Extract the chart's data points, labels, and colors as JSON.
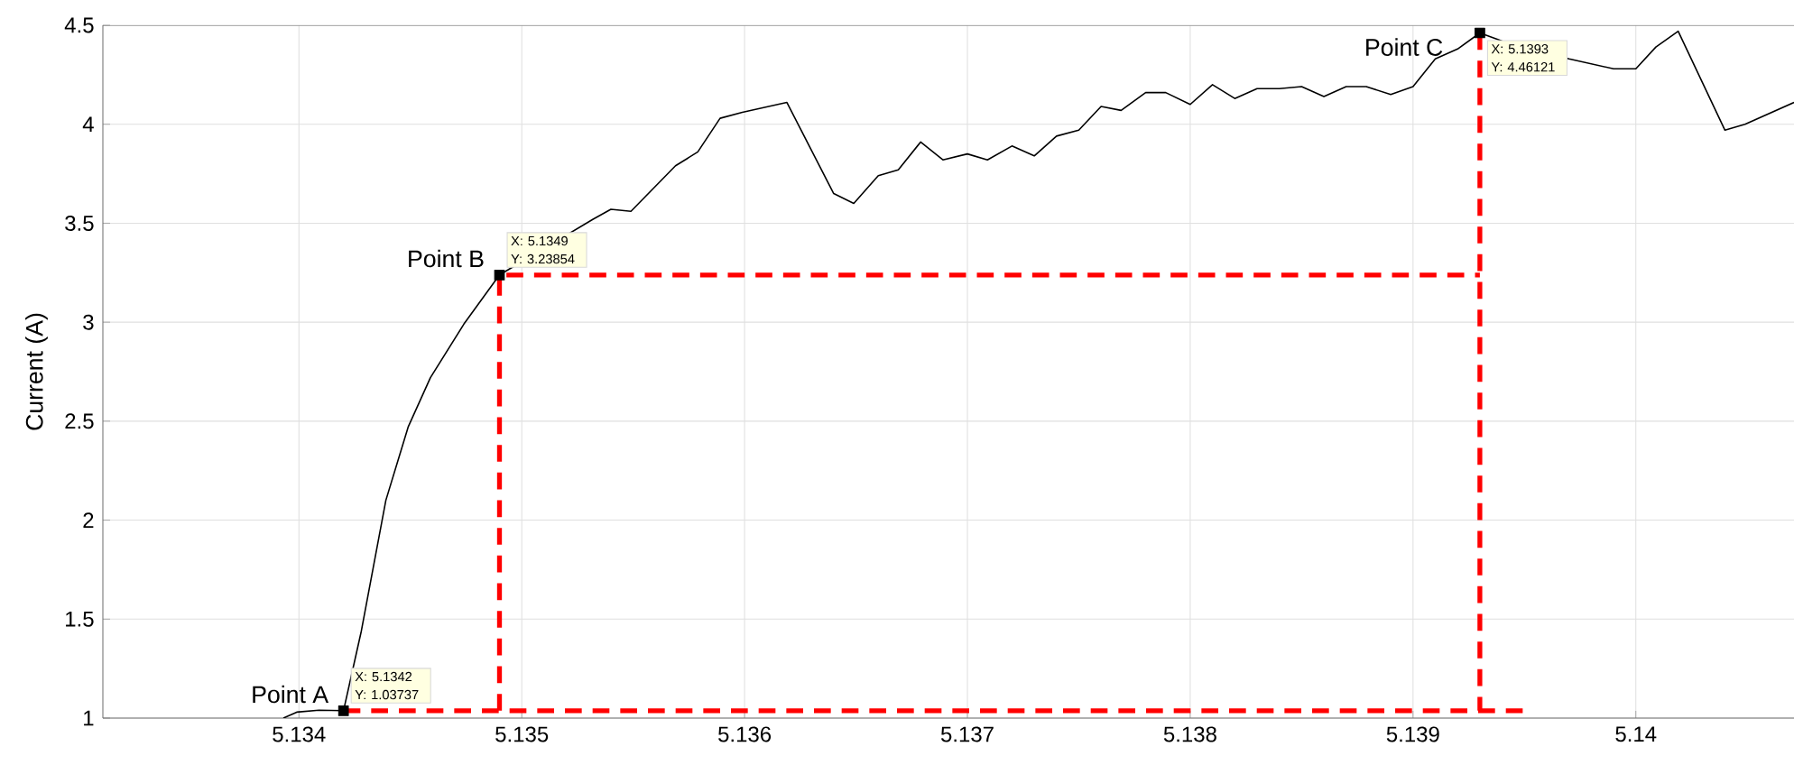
{
  "chart_data": {
    "type": "line",
    "ylabel": "Current (A)",
    "xlim": [
      5.13312,
      5.14071
    ],
    "ylim": [
      1,
      4.5
    ],
    "xticks": [
      5.134,
      5.135,
      5.136,
      5.137,
      5.138,
      5.139,
      5.14
    ],
    "yticks": [
      1,
      1.5,
      2,
      2.5,
      3,
      3.5,
      4,
      4.5
    ],
    "grid": true,
    "series": [
      {
        "color": "#000000",
        "x": [
          5.13393,
          5.13399,
          5.13409,
          5.1342,
          5.13428,
          5.13439,
          5.13449,
          5.13459,
          5.13474,
          5.1349,
          5.13532,
          5.1354,
          5.13549,
          5.13569,
          5.13579,
          5.13589,
          5.13599,
          5.13619,
          5.1364,
          5.13649,
          5.1366,
          5.13669,
          5.13679,
          5.13689,
          5.137,
          5.13709,
          5.1372,
          5.1373,
          5.1374,
          5.1375,
          5.1376,
          5.13769,
          5.1378,
          5.13789,
          5.138,
          5.1381,
          5.1382,
          5.1383,
          5.1384,
          5.1385,
          5.1386,
          5.1387,
          5.13879,
          5.1389,
          5.139,
          5.1391,
          5.1392,
          5.1393,
          5.1394,
          5.1397,
          5.1399,
          5.14,
          5.14009,
          5.14019,
          5.1404,
          5.14049,
          5.14071
        ],
        "values": [
          1.0,
          1.03,
          1.04,
          1.03737,
          1.44,
          2.1,
          2.47,
          2.72,
          2.99,
          3.23854,
          3.52,
          3.57,
          3.56,
          3.79,
          3.86,
          4.03,
          4.06,
          4.11,
          3.65,
          3.6,
          3.74,
          3.77,
          3.91,
          3.82,
          3.85,
          3.82,
          3.89,
          3.84,
          3.94,
          3.97,
          4.09,
          4.07,
          4.16,
          4.16,
          4.1,
          4.2,
          4.13,
          4.18,
          4.18,
          4.19,
          4.14,
          4.19,
          4.19,
          4.15,
          4.19,
          4.33,
          4.38,
          4.46121,
          4.42,
          4.33,
          4.28,
          4.28,
          4.39,
          4.47,
          3.97,
          4.0,
          4.11
        ]
      },
      {
        "type": "line",
        "color": "#ff0000",
        "line_style": "dashed",
        "x": [
          5.1342,
          5.13951,
          null,
          5.1349,
          5.1349,
          5.1393,
          null,
          5.1393,
          5.1393
        ],
        "values": [
          1.03737,
          1.03737,
          null,
          1.03737,
          3.23854,
          3.23854,
          null,
          4.46121,
          1.03737
        ]
      },
      {
        "type": "scatter",
        "color": "#000000",
        "marker": "square",
        "x": [
          5.1342,
          5.1349,
          5.1393
        ],
        "values": [
          1.03737,
          3.23854,
          4.46121
        ]
      }
    ],
    "annotations": [
      {
        "text": "Point A",
        "x": 5.1342,
        "y": 1.03737
      },
      {
        "text": "X: 5.1342 Y: 1.03737",
        "x": 5.1342,
        "y": 1.03737
      },
      {
        "text": "Point B",
        "x": 5.1349,
        "y": 3.23854
      },
      {
        "text": "X: 5.1349 Y: 3.23854",
        "x": 5.1349,
        "y": 3.23854
      },
      {
        "text": "Point C",
        "x": 5.1393,
        "y": 4.46121
      },
      {
        "text": "X: 5.1393 Y: 4.46121",
        "x": 5.1393,
        "y": 4.46121
      }
    ]
  }
}
